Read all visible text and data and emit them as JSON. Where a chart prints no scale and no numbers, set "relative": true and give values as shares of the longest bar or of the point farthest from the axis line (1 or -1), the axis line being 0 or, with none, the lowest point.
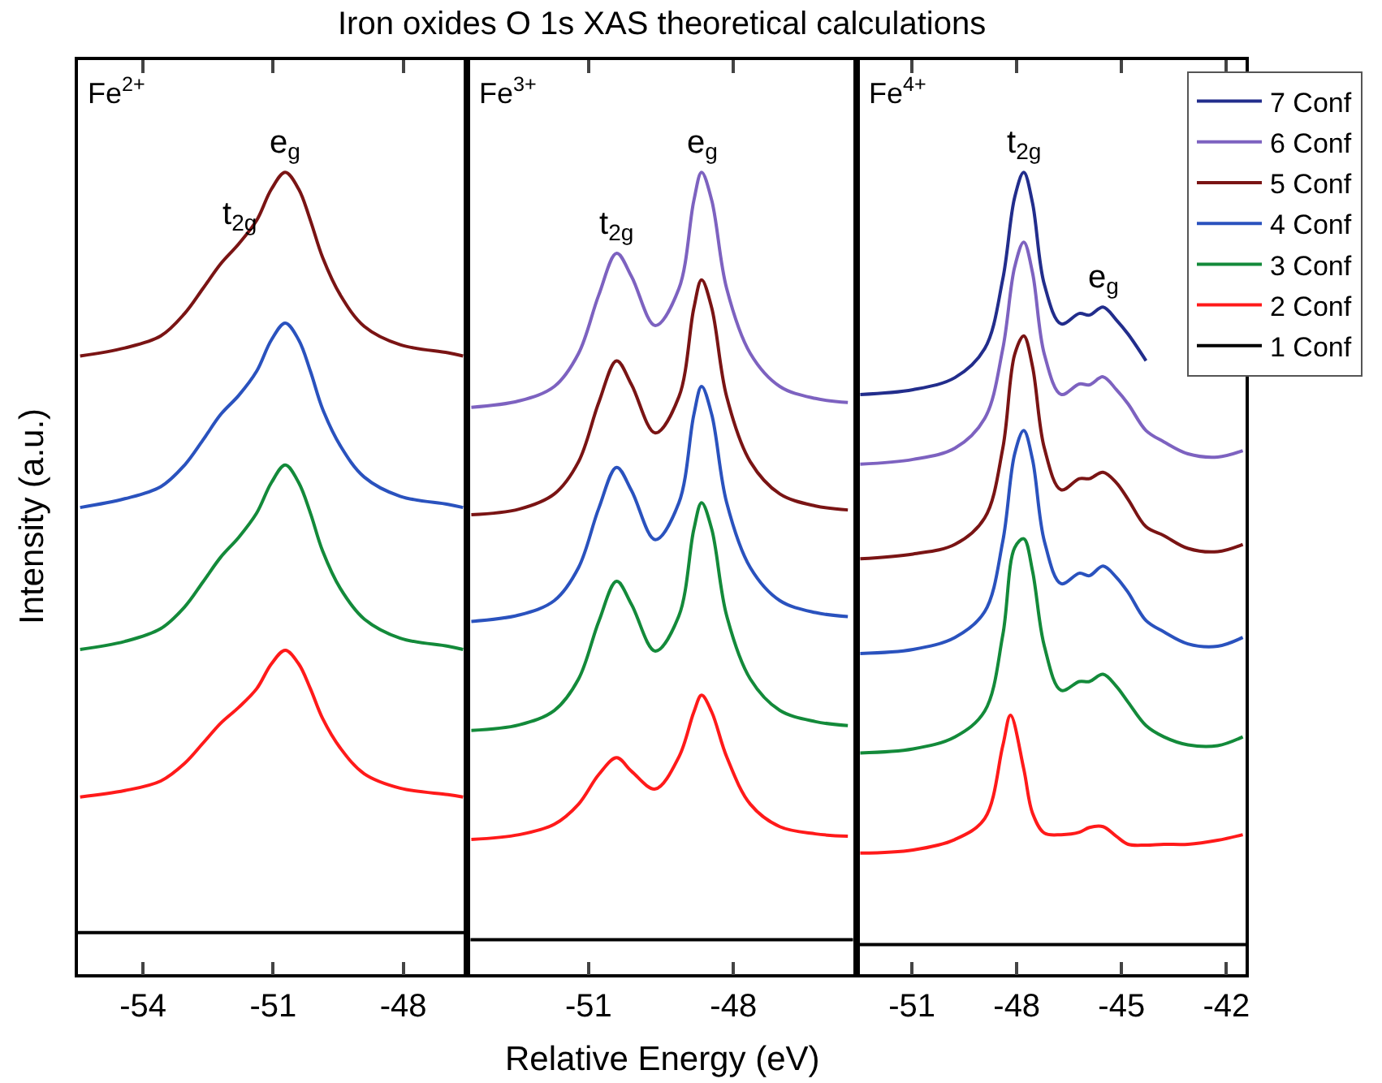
{
  "chart_data": [
    {
      "type": "line",
      "relative": true,
      "title": "Iron oxides O 1s XAS theoretical calculations",
      "ylabel": "Intensity (a.u.)",
      "xlim": [
        -55.5,
        -46.6
      ],
      "xticks": [
        -54,
        -51,
        -48
      ],
      "x": [
        -55.45,
        -54.42,
        -53.59,
        -53.04,
        -52.62,
        -52.21,
        -51.79,
        -51.38,
        -51.04,
        -50.72,
        -50.41,
        -50.14,
        -49.86,
        -49.45,
        -48.9,
        -48.07,
        -46.97,
        -46.62
      ],
      "series": [
        {
          "color": "#7a1414",
          "values": [
            0.771,
            0.781,
            0.796,
            0.824,
            0.855,
            0.886,
            0.911,
            0.94,
            0.979,
            1.0,
            0.979,
            0.94,
            0.894,
            0.847,
            0.808,
            0.785,
            0.775,
            0.771
          ]
        },
        {
          "color": "#2a52be",
          "values": [
            0.582,
            0.593,
            0.608,
            0.635,
            0.666,
            0.698,
            0.722,
            0.752,
            0.791,
            0.812,
            0.791,
            0.752,
            0.705,
            0.659,
            0.62,
            0.596,
            0.586,
            0.582
          ]
        },
        {
          "color": "#138a3a",
          "values": [
            0.405,
            0.415,
            0.431,
            0.458,
            0.489,
            0.52,
            0.545,
            0.575,
            0.613,
            0.635,
            0.613,
            0.575,
            0.528,
            0.481,
            0.443,
            0.419,
            0.409,
            0.405
          ]
        },
        {
          "color": "#ff1a1a",
          "values": [
            0.221,
            0.229,
            0.241,
            0.263,
            0.288,
            0.313,
            0.333,
            0.356,
            0.387,
            0.404,
            0.387,
            0.356,
            0.319,
            0.282,
            0.25,
            0.232,
            0.224,
            0.221
          ]
        },
        {
          "color": "#000000",
          "x": [
            -55.5,
            -46.6
          ],
          "values": [
            0.052,
            0.052
          ]
        }
      ],
      "annotations": [
        "Fe$^{2+}$",
        {
          "text": "t$_{2g}$",
          "x": -51.79,
          "y": 0.911
        },
        {
          "text": "e$_{g}$",
          "x": -50.72,
          "y": 1.0
        }
      ]
    },
    {
      "type": "line",
      "relative": true,
      "xlabel": "Relative Energy (eV)",
      "xlim": [
        -53.45,
        -45.52
      ],
      "xticks": [
        -51,
        -48
      ],
      "x": [
        -53.43,
        -52.44,
        -51.71,
        -51.21,
        -50.79,
        -50.42,
        -50.11,
        -49.62,
        -49.13,
        -48.82,
        -48.66,
        -48.45,
        -48.14,
        -47.65,
        -47.04,
        -46.3,
        -45.63
      ],
      "series": [
        {
          "color": "#7d62c0",
          "values": [
            0.707,
            0.715,
            0.733,
            0.774,
            0.847,
            0.899,
            0.87,
            0.809,
            0.855,
            0.965,
            1.0,
            0.965,
            0.855,
            0.774,
            0.733,
            0.718,
            0.713
          ]
        },
        {
          "color": "#7a1414",
          "values": [
            0.573,
            0.58,
            0.599,
            0.639,
            0.713,
            0.765,
            0.735,
            0.675,
            0.72,
            0.831,
            0.866,
            0.831,
            0.72,
            0.639,
            0.599,
            0.584,
            0.579
          ]
        },
        {
          "color": "#2a52be",
          "values": [
            0.44,
            0.448,
            0.466,
            0.507,
            0.581,
            0.632,
            0.603,
            0.542,
            0.588,
            0.698,
            0.733,
            0.698,
            0.588,
            0.507,
            0.466,
            0.451,
            0.446
          ]
        },
        {
          "color": "#138a3a",
          "values": [
            0.304,
            0.311,
            0.329,
            0.368,
            0.44,
            0.49,
            0.461,
            0.403,
            0.447,
            0.555,
            0.588,
            0.555,
            0.447,
            0.368,
            0.329,
            0.315,
            0.31
          ]
        },
        {
          "color": "#ff1a1a",
          "values": [
            0.168,
            0.174,
            0.187,
            0.212,
            0.249,
            0.27,
            0.253,
            0.231,
            0.271,
            0.327,
            0.348,
            0.327,
            0.271,
            0.212,
            0.184,
            0.175,
            0.172
          ]
        },
        {
          "color": "#000000",
          "x": [
            -53.45,
            -45.52
          ],
          "values": [
            0.043,
            0.043
          ]
        }
      ],
      "annotations": [
        "Fe$^{3+}$",
        {
          "text": "t$_{2g}$",
          "x": -50.42,
          "y": 0.899
        },
        {
          "text": "e$_{g}$",
          "x": -48.66,
          "y": 1.0
        }
      ]
    },
    {
      "type": "line",
      "relative": true,
      "legend": "top right",
      "xlim": [
        -52.5,
        -41.45
      ],
      "xticks": [
        -51,
        -48,
        -45,
        -42
      ],
      "x": [
        -52.48,
        -50.97,
        -49.77,
        -48.92,
        -48.4,
        -48.06,
        -47.8,
        -47.55,
        -47.21,
        -46.73,
        -46.21,
        -45.92,
        -45.53,
        -45.15,
        -44.81,
        -44.3,
        -43.79,
        -43.1,
        -42.25,
        -41.53
      ],
      "series": [
        {
          "name": "7 Conf",
          "color": "#222d8c",
          "values": [
            0.723,
            0.729,
            0.744,
            0.78,
            0.867,
            0.969,
            1.0,
            0.962,
            0.86,
            0.811,
            0.824,
            0.822,
            0.832,
            0.816,
            0.798,
            0.765,
            null,
            null,
            null,
            null
          ]
        },
        {
          "name": "6 Conf",
          "color": "#7d62c0",
          "values": [
            0.636,
            0.642,
            0.656,
            0.693,
            0.78,
            0.882,
            0.913,
            0.875,
            0.773,
            0.723,
            0.736,
            0.735,
            0.745,
            0.729,
            0.711,
            0.678,
            0.664,
            0.649,
            0.645,
            0.653
          ]
        },
        {
          "name": "5 Conf",
          "color": "#7a1414",
          "values": [
            0.518,
            0.524,
            0.536,
            0.569,
            0.656,
            0.773,
            0.796,
            0.758,
            0.656,
            0.604,
            0.618,
            0.618,
            0.626,
            0.613,
            0.592,
            0.558,
            0.547,
            0.531,
            0.527,
            0.536
          ]
        },
        {
          "name": "4 Conf",
          "color": "#2a52be",
          "values": [
            0.4,
            0.405,
            0.42,
            0.452,
            0.54,
            0.649,
            0.678,
            0.642,
            0.54,
            0.487,
            0.5,
            0.497,
            0.509,
            0.495,
            0.476,
            0.441,
            0.427,
            0.412,
            0.409,
            0.42
          ]
        },
        {
          "name": "3 Conf",
          "color": "#138a3a",
          "values": [
            0.276,
            0.281,
            0.296,
            0.328,
            0.423,
            0.532,
            0.543,
            0.503,
            0.409,
            0.354,
            0.365,
            0.365,
            0.374,
            0.359,
            0.339,
            0.31,
            0.296,
            0.286,
            0.285,
            0.296
          ]
        },
        {
          "name": "2 Conf",
          "color": "#ff1a1a",
          "x": [
            -52.48,
            -50.97,
            -49.77,
            -48.92,
            -48.4,
            -48.18,
            -47.8,
            -47.55,
            -47.21,
            -46.73,
            -46.21,
            -45.92,
            -45.53,
            -45.15,
            -44.81,
            -44.3,
            -43.79,
            -43.1,
            -42.25,
            -41.53
          ],
          "values": [
            0.151,
            0.155,
            0.168,
            0.194,
            0.285,
            0.323,
            0.256,
            0.201,
            0.176,
            0.174,
            0.177,
            0.183,
            0.184,
            0.172,
            0.162,
            0.161,
            0.162,
            0.162,
            0.167,
            0.174
          ]
        },
        {
          "name": "1 Conf",
          "color": "#000000",
          "x": [
            -52.5,
            -41.45
          ],
          "values": [
            0.037,
            0.037
          ]
        }
      ],
      "annotations": [
        "Fe$^{4+}$",
        {
          "text": "t$_{2g}$",
          "x": -47.8,
          "y": 1.0
        },
        {
          "text": "e$_{g}$",
          "x": -45.53,
          "y": 0.832
        }
      ]
    }
  ]
}
